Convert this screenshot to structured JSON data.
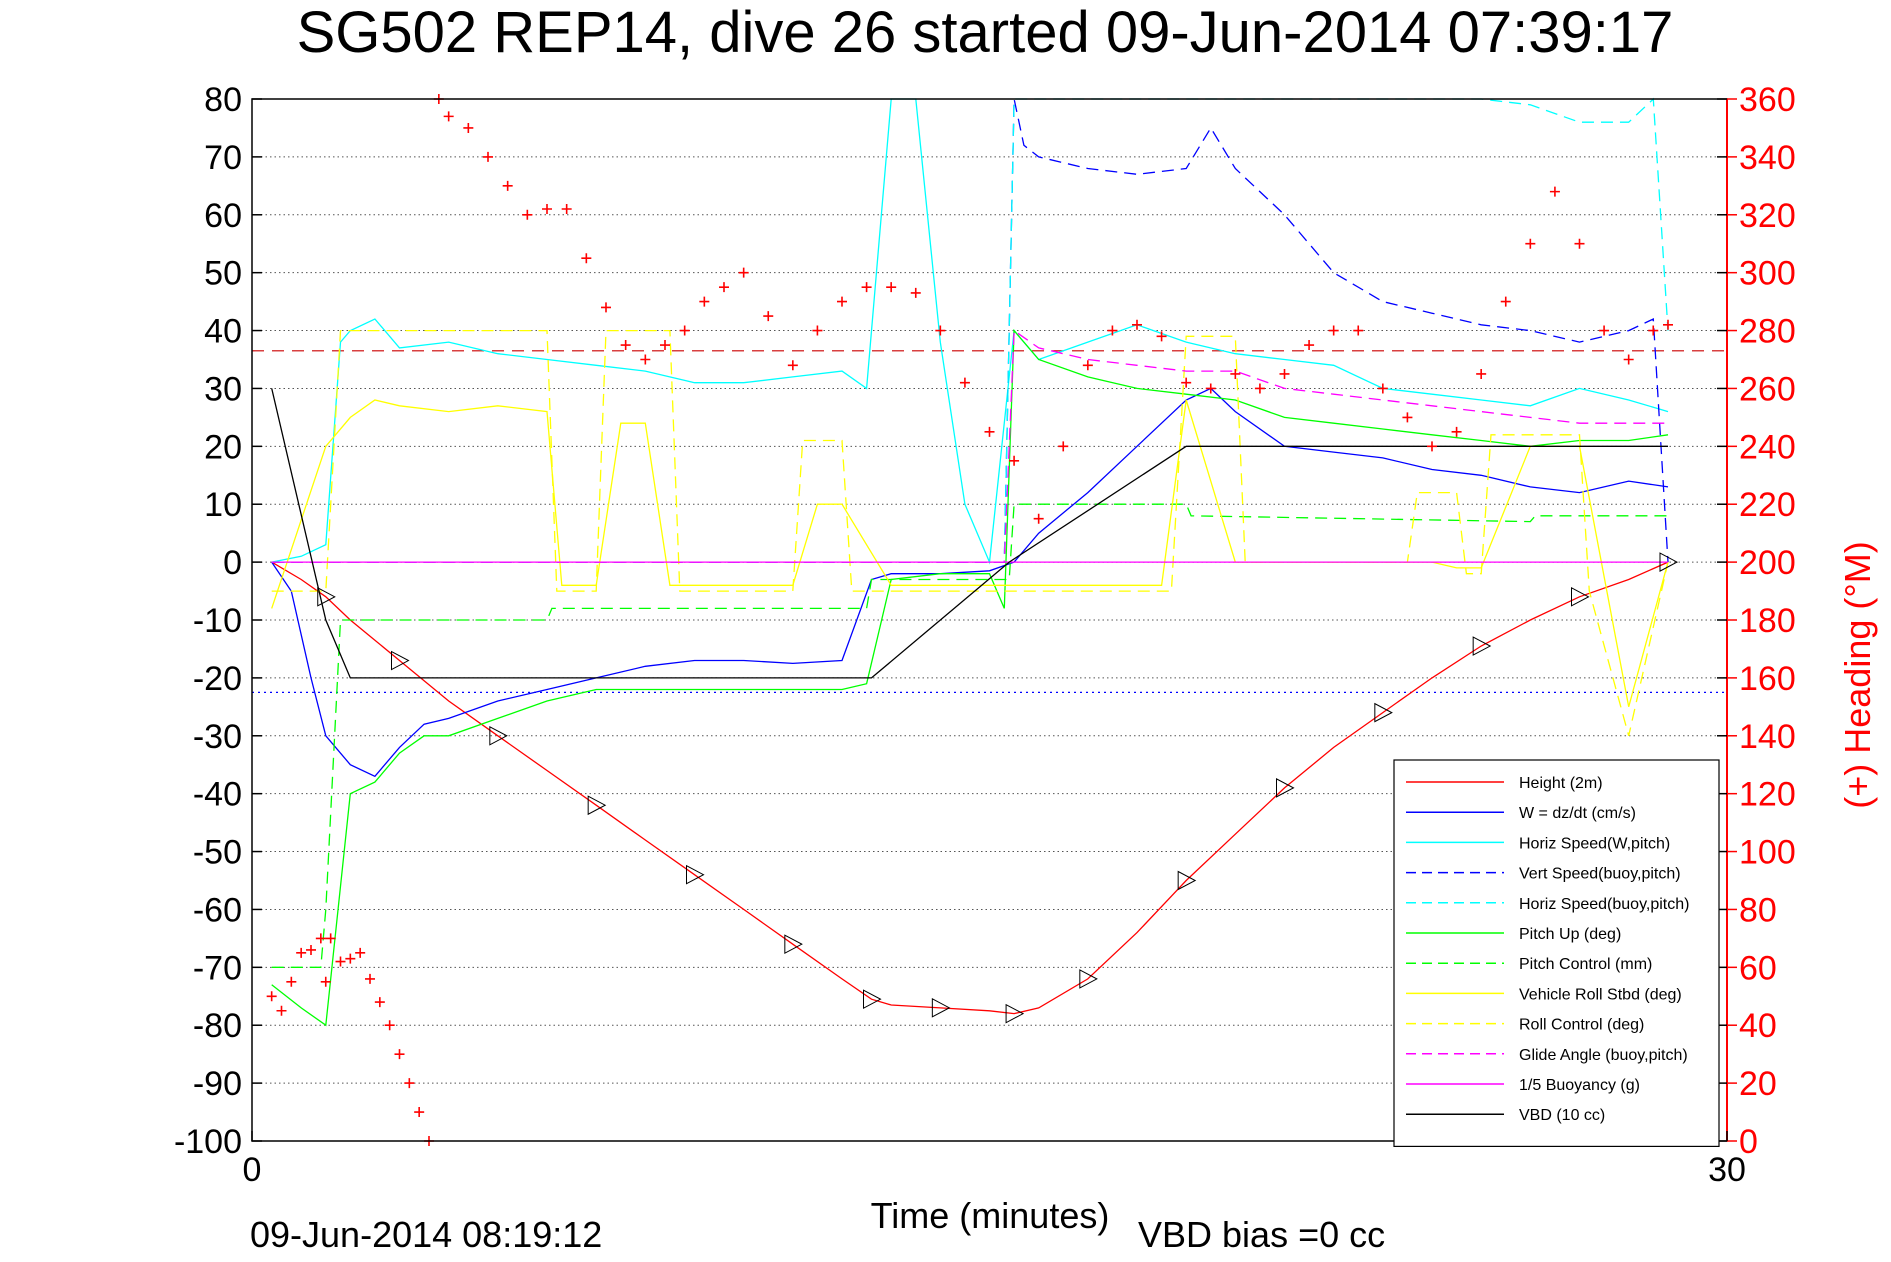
{
  "chart_data": {
    "type": "line",
    "title": "SG502 REP14, dive 26 started 09-Jun-2014 07:39:17",
    "xlabel": "Time (minutes)",
    "ylabel": "",
    "y2label": "(+) Heading (°M)",
    "xlim": [
      0,
      30
    ],
    "ylim": [
      -100,
      80
    ],
    "y2lim": [
      0,
      360
    ],
    "x_ticks": [
      "0",
      "30"
    ],
    "y_ticks": [
      "80",
      "70",
      "60",
      "50",
      "40",
      "30",
      "20",
      "10",
      "0",
      "-10",
      "-20",
      "-30",
      "-40",
      "-50",
      "-60",
      "-70",
      "-80",
      "-90",
      "-100"
    ],
    "y2_ticks": [
      "360",
      "340",
      "320",
      "300",
      "280",
      "260",
      "240",
      "220",
      "200",
      "180",
      "160",
      "140",
      "120",
      "100",
      "80",
      "60",
      "40",
      "20",
      "0"
    ],
    "grid": true,
    "legend_position": "bottom-right",
    "footer_left": "09-Jun-2014 08:19:12",
    "footer_right": "VBD bias =0 cc",
    "reference_lines": [
      {
        "color": "#cc0000",
        "style": "dashed",
        "y": 36.5
      },
      {
        "color": "#0000ff",
        "style": "dotted",
        "y": -22.5
      }
    ],
    "series": [
      {
        "name": "Height (2m)",
        "color": "#ff0000",
        "style": "solid",
        "x": [
          0.4,
          1.0,
          1.5,
          2.0,
          3.0,
          4.0,
          5.0,
          6.0,
          7.0,
          8.0,
          9.0,
          10.0,
          11.0,
          12.0,
          12.6,
          13.0,
          14.0,
          15.0,
          15.5,
          16.0,
          17.0,
          18.0,
          19.0,
          20.0,
          21.0,
          22.0,
          23.0,
          24.0,
          25.0,
          26.0,
          27.0,
          28.0,
          28.8
        ],
        "y": [
          0,
          -3,
          -6,
          -10,
          -17,
          -24,
          -30,
          -36,
          -42,
          -48,
          -54,
          -60,
          -66,
          -72,
          -75.5,
          -76.5,
          -77,
          -77.5,
          -78,
          -77,
          -72,
          -64,
          -55,
          -47,
          -39,
          -32,
          -26,
          -20,
          -14.5,
          -10,
          -6,
          -3,
          0
        ]
      },
      {
        "name": "W = dz/dt (cm/s)",
        "color": "#0000ff",
        "style": "solid",
        "x": [
          0.4,
          0.8,
          1.2,
          1.5,
          2.0,
          2.5,
          3.0,
          3.5,
          4.0,
          5.0,
          6.0,
          7.0,
          8.0,
          9.0,
          10.0,
          11.0,
          12.0,
          12.6,
          13.0,
          14.0,
          15.0,
          15.5,
          16.0,
          17.0,
          18.0,
          19.0,
          19.5,
          20.0,
          21.0,
          22.0,
          23.0,
          24.0,
          25.0,
          26.0,
          27.0,
          28.0,
          28.8
        ],
        "y": [
          0,
          -5,
          -20,
          -30,
          -35,
          -37,
          -32,
          -28,
          -27,
          -24,
          -22,
          -20,
          -18,
          -17,
          -17,
          -17.5,
          -17,
          -3,
          -2,
          -2,
          -1.5,
          0,
          5,
          12,
          20,
          28,
          30,
          26,
          20,
          19,
          18,
          16,
          15,
          13,
          12,
          14,
          13
        ]
      },
      {
        "name": "Horiz Speed(W,pitch)",
        "color": "#00ffff",
        "style": "solid",
        "x": [
          0.4,
          1.0,
          1.5,
          1.8,
          2.0,
          2.5,
          3.0,
          4.0,
          5.0,
          6.0,
          7.0,
          8.0,
          9.0,
          10.0,
          11.0,
          12.0,
          12.5,
          13.0,
          13.5,
          14.0,
          14.5,
          15.0,
          15.5,
          16.0,
          17.0,
          18.0,
          19.0,
          20.0,
          21.0,
          22.0,
          23.0,
          24.0,
          25.0,
          26.0,
          27.0,
          28.0,
          28.8
        ],
        "y": [
          0,
          1,
          3,
          38,
          40,
          42,
          37,
          38,
          36,
          35,
          34,
          33,
          31,
          31,
          32,
          33,
          30,
          80,
          80,
          38,
          10,
          0,
          40,
          35,
          38,
          41,
          38,
          36,
          35,
          34,
          30,
          29,
          28,
          27,
          30,
          28,
          26
        ]
      },
      {
        "name": "Vert Speed(buoy,pitch)",
        "color": "#0000ff",
        "style": "dashed",
        "x": [
          0.4,
          15.3,
          15.5,
          15.7,
          16.0,
          17.0,
          18.0,
          19.0,
          19.5,
          20.0,
          21.0,
          22.0,
          23.0,
          24.0,
          25.0,
          26.0,
          27.0,
          28.0,
          28.5,
          28.8
        ],
        "y": [
          0,
          0,
          80,
          72,
          70,
          68,
          67,
          68,
          75,
          68,
          60,
          50,
          45,
          43,
          41,
          40,
          38,
          40,
          42,
          0
        ]
      },
      {
        "name": "Horiz Speed(buoy,pitch)",
        "color": "#00ffff",
        "style": "dashed",
        "x": [
          0.4,
          15.3,
          15.5,
          22.0,
          24.0,
          25.0,
          26.0,
          27.0,
          28.0,
          28.5,
          28.8
        ],
        "y": [
          0,
          0,
          80,
          80,
          80,
          80,
          79,
          76,
          76,
          80,
          40
        ]
      },
      {
        "name": "Pitch Up (deg)",
        "color": "#00ff00",
        "style": "solid",
        "x": [
          0.4,
          1.0,
          1.5,
          2.0,
          2.5,
          3.0,
          3.5,
          4.0,
          5.0,
          6.0,
          7.0,
          8.0,
          9.0,
          10.0,
          11.0,
          12.0,
          12.5,
          13.0,
          14.0,
          15.0,
          15.3,
          15.5,
          16.0,
          17.0,
          18.0,
          19.0,
          20.0,
          21.0,
          22.0,
          23.0,
          24.0,
          25.0,
          26.0,
          27.0,
          28.0,
          28.8
        ],
        "y": [
          -73,
          -77,
          -80,
          -40,
          -38,
          -33,
          -30,
          -30,
          -27,
          -24,
          -22,
          -22,
          -22,
          -22,
          -22,
          -22,
          -21,
          -3,
          -2,
          -2,
          -8,
          40,
          35,
          32,
          30,
          29,
          28,
          25,
          24,
          23,
          22,
          21,
          20,
          21,
          21,
          22
        ]
      },
      {
        "name": "Pitch Control (mm)",
        "color": "#00ff00",
        "style": "dashed",
        "x": [
          0.4,
          1.4,
          1.5,
          1.8,
          2.0,
          6.0,
          6.1,
          12.5,
          12.6,
          15.4,
          15.5,
          19.0,
          19.1,
          26.0,
          26.1,
          28.8
        ],
        "y": [
          -70,
          -70,
          -60,
          -10,
          -10,
          -10,
          -8,
          -8,
          -3,
          -3,
          10,
          10,
          8,
          7,
          8,
          8
        ]
      },
      {
        "name": "Vehicle Roll Stbd (deg)",
        "color": "#ffff00",
        "style": "solid",
        "x": [
          0.4,
          1.5,
          2.0,
          2.5,
          3.0,
          4.0,
          5.0,
          6.0,
          6.3,
          7.0,
          7.5,
          8.0,
          8.5,
          9.0,
          10.0,
          11.0,
          11.5,
          12.0,
          13.0,
          14.0,
          18.5,
          19.0,
          20.0,
          21.0,
          22.0,
          23.0,
          24.0,
          24.5,
          25.0,
          26.0,
          27.0,
          28.0,
          28.8
        ],
        "y": [
          -8,
          20,
          25,
          28,
          27,
          26,
          27,
          26,
          -4,
          -4,
          24,
          24,
          -4,
          -4,
          -4,
          -4,
          10,
          10,
          -4,
          -4,
          -4,
          28,
          0,
          0,
          0,
          0,
          0,
          -1,
          -1,
          20,
          20,
          -25,
          0
        ]
      },
      {
        "name": "Roll Control (deg)",
        "color": "#ffff00",
        "style": "dashed",
        "x": [
          0.4,
          1.5,
          1.8,
          6.0,
          6.2,
          7.0,
          7.2,
          8.5,
          8.7,
          11.0,
          11.2,
          12.0,
          12.2,
          18.7,
          19.0,
          20.0,
          20.2,
          23.5,
          23.7,
          24.5,
          24.7,
          25.0,
          25.2,
          27.0,
          27.2,
          28.0,
          28.8
        ],
        "y": [
          -5,
          -5,
          40,
          40,
          -5,
          -5,
          40,
          40,
          -5,
          -5,
          21,
          21,
          -5,
          -5,
          39,
          39,
          0,
          0,
          12,
          12,
          -2,
          -2,
          22,
          22,
          -5,
          -30,
          0
        ]
      },
      {
        "name": "Glide Angle (buoy,pitch)",
        "color": "#ff00ff",
        "style": "dashed",
        "x": [
          0.4,
          15.3,
          15.5,
          16.0,
          17.0,
          18.0,
          19.0,
          20.0,
          21.0,
          22.0,
          23.0,
          24.0,
          25.0,
          26.0,
          27.0,
          28.0,
          28.8
        ],
        "y": [
          0,
          0,
          40,
          37,
          35,
          34,
          33,
          33,
          30,
          29,
          28,
          27,
          26,
          25,
          24,
          24,
          24
        ]
      },
      {
        "name": "1/5 Buoyancy (g)",
        "color": "#ff00ff",
        "style": "solid",
        "x": [
          0.4,
          28.8
        ],
        "y": [
          0,
          0
        ]
      },
      {
        "name": "VBD (10 cc)",
        "color": "#000000",
        "style": "solid",
        "x": [
          0.4,
          1.5,
          2.0,
          12.6,
          15.4,
          19.0,
          28.8
        ],
        "y": [
          30,
          -10,
          -20,
          -20,
          0,
          20,
          20
        ]
      },
      {
        "name": "",
        "color": "#ff0000",
        "style": "plus",
        "axis": "y2",
        "x": [
          0.4,
          0.6,
          0.8,
          1.0,
          1.2,
          1.4,
          1.5,
          1.6,
          1.8,
          2.0,
          2.2,
          2.4,
          2.6,
          2.8,
          3.0,
          3.2,
          3.4,
          3.6,
          3.8,
          4.0,
          4.4,
          4.8,
          5.2,
          5.6,
          6.0,
          6.4,
          6.8,
          7.2,
          7.6,
          8.0,
          8.4,
          8.8,
          9.2,
          9.6,
          10.0,
          10.5,
          11.0,
          11.5,
          12.0,
          12.5,
          13.0,
          13.5,
          14.0,
          14.5,
          15.0,
          15.5,
          16.0,
          16.5,
          17.0,
          17.5,
          18.0,
          18.5,
          19.0,
          19.5,
          20.0,
          20.5,
          21.0,
          21.5,
          22.0,
          22.5,
          23.0,
          23.5,
          24.0,
          24.5,
          25.0,
          25.5,
          26.0,
          26.5,
          27.0,
          27.5,
          28.0,
          28.5,
          28.8
        ],
        "y": [
          50,
          45,
          55,
          65,
          66,
          70,
          55,
          70,
          62,
          63,
          65,
          56,
          48,
          40,
          30,
          20,
          10,
          0,
          360,
          354,
          350,
          340,
          330,
          320,
          322,
          322,
          305,
          288,
          275,
          270,
          275,
          280,
          290,
          295,
          300,
          285,
          268,
          280,
          290,
          295,
          295,
          293,
          280,
          262,
          245,
          235,
          215,
          240,
          268,
          280,
          282,
          278,
          262,
          260,
          265,
          260,
          265,
          275,
          280,
          280,
          260,
          250,
          240,
          245,
          265,
          290,
          310,
          328,
          310,
          280,
          270,
          280,
          282
        ]
      }
    ]
  }
}
